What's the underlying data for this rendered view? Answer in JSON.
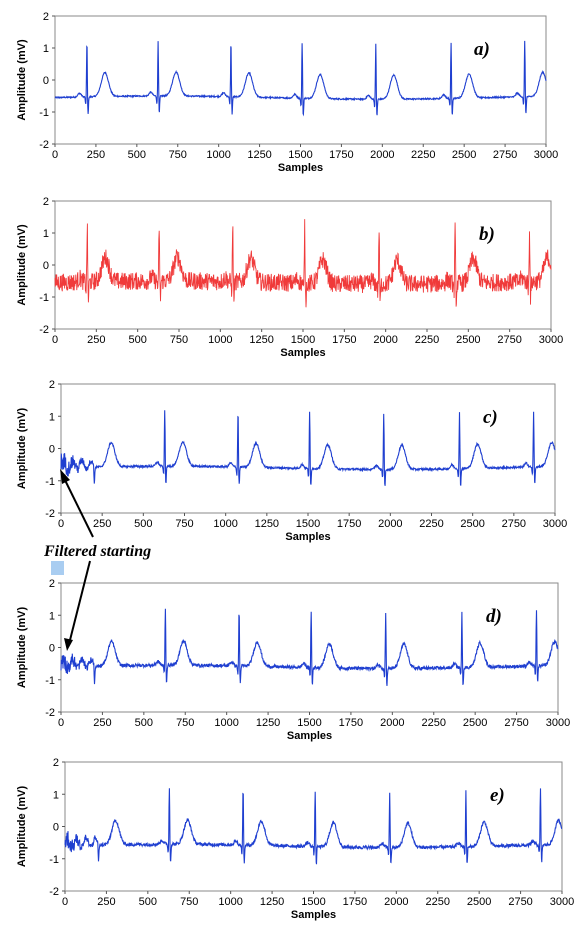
{
  "figure": {
    "annotation": "Filtered starting",
    "highlight_color": "#a9cdf1"
  },
  "chart_data": [
    {
      "type": "line",
      "panel": "a)",
      "xlabel": "Samples",
      "ylabel": "Amplitude (mV)",
      "xlim": [
        0,
        3000
      ],
      "ylim": [
        -2,
        2
      ],
      "xticks": [
        0,
        250,
        500,
        750,
        1000,
        1250,
        1500,
        1750,
        2000,
        2250,
        2500,
        2750,
        3000
      ],
      "yticks": [
        -2,
        -1,
        0,
        1,
        2
      ],
      "color": "#1f3fd0",
      "noise": 0.02,
      "startup_transient": false,
      "beats_x": [
        195,
        630,
        1075,
        1510,
        1960,
        2420,
        2870
      ],
      "baseline": -0.55
    },
    {
      "type": "line",
      "panel": "b)",
      "xlabel": "Samples",
      "ylabel": "Amplitude (mV)",
      "xlim": [
        0,
        3000
      ],
      "ylim": [
        -2,
        2
      ],
      "xticks": [
        0,
        250,
        500,
        750,
        1000,
        1250,
        1500,
        1750,
        2000,
        2250,
        2500,
        2750,
        3000
      ],
      "yticks": [
        -2,
        -1,
        0,
        1,
        2
      ],
      "color": "#f03a3a",
      "noise": 0.28,
      "startup_transient": false,
      "beats_x": [
        195,
        630,
        1075,
        1510,
        1960,
        2420,
        2870
      ],
      "baseline": -0.55
    },
    {
      "type": "line",
      "panel": "c)",
      "xlabel": "Samples",
      "ylabel": "Amplitude (mV)",
      "xlim": [
        0,
        3000
      ],
      "ylim": [
        -2,
        2
      ],
      "xticks": [
        0,
        250,
        500,
        750,
        1000,
        1250,
        1500,
        1750,
        2000,
        2250,
        2500,
        2750,
        3000
      ],
      "yticks": [
        -2,
        -1,
        0,
        1,
        2
      ],
      "color": "#1f3fd0",
      "noise": 0.03,
      "startup_transient": true,
      "beats_x": [
        195,
        630,
        1075,
        1510,
        1960,
        2420,
        2870
      ],
      "baseline": -0.6
    },
    {
      "type": "line",
      "panel": "d)",
      "xlabel": "Samples",
      "ylabel": "Amplitude (mV)",
      "xlim": [
        0,
        3000
      ],
      "ylim": [
        -2,
        2
      ],
      "xticks": [
        0,
        250,
        500,
        750,
        1000,
        1250,
        1500,
        1750,
        2000,
        2250,
        2500,
        2750,
        3000
      ],
      "yticks": [
        -2,
        -1,
        0,
        1,
        2
      ],
      "color": "#1f3fd0",
      "noise": 0.05,
      "startup_transient": true,
      "beats_x": [
        195,
        630,
        1075,
        1510,
        1960,
        2420,
        2870
      ],
      "baseline": -0.6
    },
    {
      "type": "line",
      "panel": "e)",
      "xlabel": "Samples",
      "ylabel": "Amplitude (mV)",
      "xlim": [
        0,
        3000
      ],
      "ylim": [
        -2,
        2
      ],
      "xticks": [
        0,
        250,
        500,
        750,
        1000,
        1250,
        1500,
        1750,
        2000,
        2250,
        2500,
        2750,
        3000
      ],
      "yticks": [
        -2,
        -1,
        0,
        1,
        2
      ],
      "color": "#1f3fd0",
      "noise": 0.05,
      "startup_transient": true,
      "beats_x": [
        195,
        630,
        1075,
        1510,
        1960,
        2420,
        2870
      ],
      "baseline": -0.6
    }
  ]
}
